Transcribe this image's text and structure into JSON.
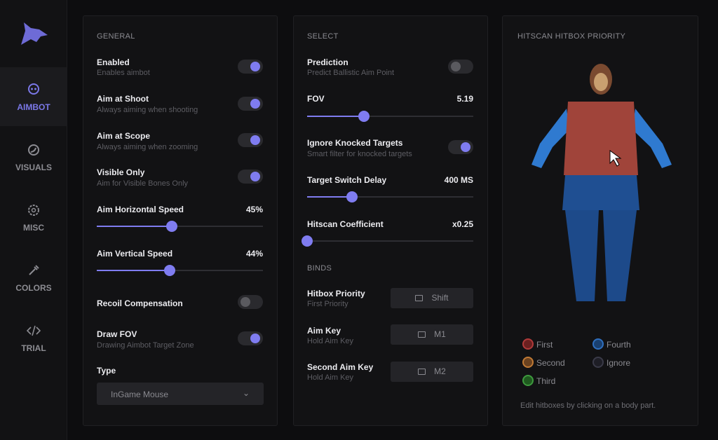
{
  "sidebar": {
    "items": [
      {
        "label": "AIMBOT",
        "icon": "skull-icon",
        "active": true
      },
      {
        "label": "VISUALS",
        "icon": "eye-icon"
      },
      {
        "label": "MISC",
        "icon": "gear-icon"
      },
      {
        "label": "COLORS",
        "icon": "eyedropper-icon"
      },
      {
        "label": "TRIAL",
        "icon": "code-icon"
      }
    ]
  },
  "general": {
    "title": "GENERAL",
    "enabled": {
      "label": "Enabled",
      "desc": "Enables aimbot",
      "on": true
    },
    "aim_shoot": {
      "label": "Aim at Shoot",
      "desc": "Always aiming when shooting",
      "on": true
    },
    "aim_scope": {
      "label": "Aim at Scope",
      "desc": "Always aiming when zooming",
      "on": true
    },
    "visible_only": {
      "label": "Visible Only",
      "desc": "Aim for Visible Bones Only",
      "on": true
    },
    "h_speed": {
      "label": "Aim Horizontal Speed",
      "value": "45%",
      "fraction": 0.45
    },
    "v_speed": {
      "label": "Aim Vertical Speed",
      "value": "44%",
      "fraction": 0.44
    },
    "recoil": {
      "label": "Recoil Compensation",
      "on": false
    },
    "draw_fov": {
      "label": "Draw FOV",
      "desc": "Drawing Aimbot Target Zone",
      "on": true
    },
    "type": {
      "label": "Type",
      "value": "InGame Mouse"
    }
  },
  "select": {
    "title": "SELECT",
    "prediction": {
      "label": "Prediction",
      "desc": "Predict Ballistic Aim Point",
      "on": false
    },
    "fov": {
      "label": "FOV",
      "value": "5.19",
      "fraction": 0.34
    },
    "ignore_knocked": {
      "label": "Ignore Knocked Targets",
      "desc": "Smart filter for knocked targets",
      "on": true
    },
    "switch_delay": {
      "label": "Target Switch Delay",
      "value": "400 MS",
      "fraction": 0.27
    },
    "hitscan": {
      "label": "Hitscan Coefficient",
      "value": "x0.25",
      "fraction": 0.0
    },
    "binds_title": "BINDS",
    "hitbox_priority": {
      "label": "Hitbox Priority",
      "desc": "First Priority",
      "key": "Shift"
    },
    "aim_key": {
      "label": "Aim Key",
      "desc": "Hold Aim Key",
      "key": "M1"
    },
    "second_aim_key": {
      "label": "Second Aim Key",
      "desc": "Hold Aim Key",
      "key": "M2"
    }
  },
  "hitbox": {
    "title": "HITSCAN HITBOX PRIORITY",
    "legend": [
      {
        "label": "First",
        "color": "#b03a3a"
      },
      {
        "label": "Second",
        "color": "#c07a35"
      },
      {
        "label": "Third",
        "color": "#3e9a3e"
      },
      {
        "label": "Fourth",
        "color": "#2f6fbf"
      },
      {
        "label": "Ignore",
        "color": "#3a3a48"
      }
    ],
    "note": "Edit hitboxes by clicking on a body part."
  }
}
